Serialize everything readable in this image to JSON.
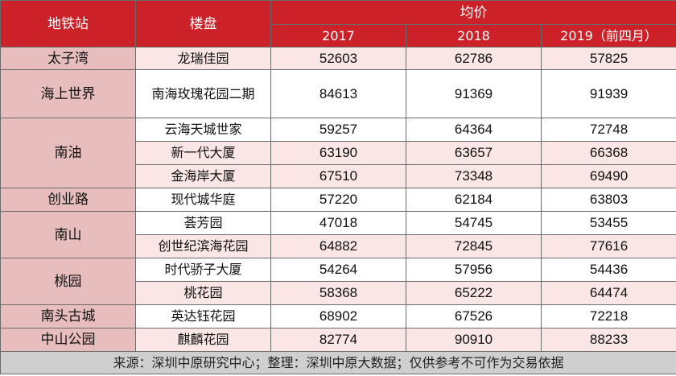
{
  "header": {
    "station": "地铁站",
    "property": "楼盘",
    "avg_price": "均价",
    "years": [
      "2017",
      "2018",
      "2019（前四月）"
    ]
  },
  "rows": [
    {
      "station": "太子湾",
      "property": "龙瑞佳园",
      "v2017": "52603",
      "v2018": "62786",
      "v2019": "57825"
    },
    {
      "station": "海上世界",
      "property": "南海玫瑰花园二期",
      "v2017": "84613",
      "v2018": "91369",
      "v2019": "91939"
    },
    {
      "station": "南油",
      "property": "云海天城世家",
      "v2017": "59257",
      "v2018": "64364",
      "v2019": "72748"
    },
    {
      "station": "",
      "property": "新一代大厦",
      "v2017": "63190",
      "v2018": "63657",
      "v2019": "66368"
    },
    {
      "station": "",
      "property": "金海岸大厦",
      "v2017": "67510",
      "v2018": "73348",
      "v2019": "69490"
    },
    {
      "station": "创业路",
      "property": "现代城华庭",
      "v2017": "57220",
      "v2018": "62184",
      "v2019": "63803"
    },
    {
      "station": "南山",
      "property": "荟芳园",
      "v2017": "47018",
      "v2018": "54745",
      "v2019": "53455"
    },
    {
      "station": "",
      "property": "创世纪滨海花园",
      "v2017": "64882",
      "v2018": "72845",
      "v2019": "77616"
    },
    {
      "station": "桃园",
      "property": "时代骄子大厦",
      "v2017": "54264",
      "v2018": "57956",
      "v2019": "54436"
    },
    {
      "station": "",
      "property": "桃花园",
      "v2017": "58368",
      "v2018": "65222",
      "v2019": "64474"
    },
    {
      "station": "南头古城",
      "property": "英达钰花园",
      "v2017": "68902",
      "v2018": "67526",
      "v2019": "72218"
    },
    {
      "station": "中山公园",
      "property": "麒麟花园",
      "v2017": "82774",
      "v2018": "90910",
      "v2019": "88233"
    }
  ],
  "source": "来源：深圳中原研究中心；整理：深圳中原大数据；仅供参考不可作为交易依据"
}
